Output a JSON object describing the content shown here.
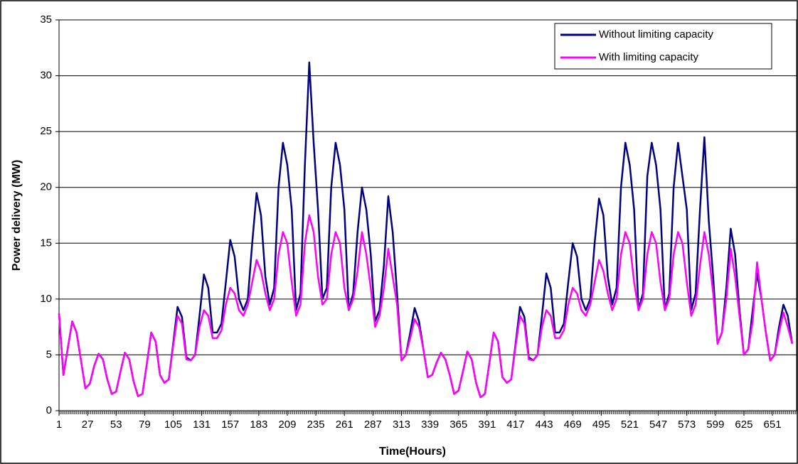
{
  "chart_data": {
    "type": "line",
    "x_label": "Time(Hours)",
    "y_label": "Power delivery (MW)",
    "xlim": [
      1,
      673
    ],
    "xticks": [
      1,
      27,
      53,
      79,
      105,
      131,
      157,
      183,
      209,
      235,
      261,
      287,
      313,
      339,
      365,
      391,
      417,
      443,
      469,
      495,
      521,
      547,
      573,
      599,
      625,
      651
    ],
    "ylim": [
      0,
      35
    ],
    "yticks": [
      0,
      5,
      10,
      15,
      20,
      25,
      30,
      35
    ],
    "grid": true,
    "legend": "top-right",
    "x": [
      1,
      5,
      9,
      13,
      17,
      21,
      25,
      29,
      33,
      37,
      41,
      45,
      49,
      53,
      57,
      61,
      65,
      69,
      73,
      77,
      81,
      85,
      89,
      93,
      97,
      101,
      105,
      109,
      113,
      117,
      121,
      125,
      129,
      133,
      137,
      141,
      145,
      149,
      153,
      157,
      161,
      165,
      169,
      173,
      177,
      181,
      185,
      189,
      193,
      197,
      201,
      205,
      209,
      213,
      217,
      221,
      225,
      229,
      233,
      237,
      241,
      245,
      249,
      253,
      257,
      261,
      265,
      269,
      273,
      277,
      281,
      285,
      289,
      293,
      297,
      301,
      305,
      309,
      313,
      317,
      321,
      325,
      329,
      333,
      337,
      341,
      345,
      349,
      353,
      357,
      361,
      365,
      369,
      373,
      377,
      381,
      385,
      389,
      393,
      397,
      401,
      405,
      409,
      413,
      417,
      421,
      425,
      429,
      433,
      437,
      441,
      445,
      449,
      453,
      457,
      461,
      465,
      469,
      473,
      477,
      481,
      485,
      489,
      493,
      497,
      501,
      505,
      509,
      513,
      517,
      521,
      525,
      529,
      533,
      537,
      541,
      545,
      549,
      553,
      557,
      561,
      565,
      569,
      573,
      577,
      581,
      585,
      589,
      593,
      597,
      601,
      605,
      609,
      613,
      617,
      621,
      625,
      629,
      633,
      637,
      641,
      645,
      649,
      653,
      657,
      661,
      665,
      669
    ],
    "series": [
      {
        "name": "Without limiting capacity",
        "color": "#000080",
        "values": [
          8.7,
          3.2,
          5.6,
          8.0,
          7.0,
          4.5,
          2.0,
          2.4,
          4.0,
          5.1,
          4.6,
          2.8,
          1.5,
          1.7,
          3.5,
          5.2,
          4.6,
          2.6,
          1.3,
          1.5,
          4.2,
          7.0,
          6.2,
          3.2,
          2.5,
          2.8,
          6.0,
          9.3,
          8.4,
          4.8,
          4.5,
          5.0,
          8.5,
          12.2,
          11.0,
          7.0,
          7.0,
          7.8,
          11.5,
          15.3,
          13.8,
          10.0,
          9.0,
          10.0,
          15.0,
          19.5,
          17.5,
          12.0,
          9.5,
          11.0,
          20.0,
          24.0,
          22.0,
          18.0,
          9.0,
          10.5,
          22.0,
          31.2,
          24.0,
          18.0,
          10.0,
          11.0,
          20.0,
          24.0,
          22.0,
          18.0,
          9.0,
          10.5,
          16.0,
          20.0,
          18.0,
          14.0,
          8.0,
          9.0,
          13.0,
          19.2,
          16.0,
          10.5,
          4.5,
          5.0,
          7.0,
          9.2,
          8.0,
          5.5,
          3.0,
          3.2,
          4.3,
          5.2,
          4.6,
          3.2,
          1.5,
          1.8,
          3.5,
          5.3,
          4.6,
          2.5,
          1.2,
          1.5,
          4.2,
          7.0,
          6.2,
          3.0,
          2.5,
          2.8,
          6.0,
          9.3,
          8.4,
          4.8,
          4.5,
          5.0,
          8.5,
          12.3,
          11.0,
          7.0,
          7.0,
          7.8,
          11.5,
          15.0,
          13.8,
          10.0,
          9.0,
          10.0,
          15.0,
          19.0,
          17.5,
          12.0,
          9.5,
          11.0,
          20.0,
          24.0,
          22.0,
          18.0,
          9.0,
          10.5,
          21.0,
          24.0,
          22.0,
          18.0,
          9.0,
          10.5,
          20.0,
          24.0,
          21.0,
          18.0,
          9.0,
          10.5,
          18.0,
          24.5,
          17.0,
          12.0,
          6.0,
          7.0,
          11.0,
          16.3,
          14.0,
          9.0,
          5.0,
          5.5,
          9.0,
          12.3,
          10.0,
          7.0,
          4.5,
          5.0,
          7.5,
          9.5,
          8.5,
          6.0
        ]
      },
      {
        "name": "With limiting capacity",
        "color": "#ff00ff",
        "values": [
          8.7,
          3.2,
          5.6,
          8.0,
          7.0,
          4.5,
          2.0,
          2.4,
          4.0,
          5.1,
          4.6,
          2.8,
          1.5,
          1.7,
          3.5,
          5.2,
          4.6,
          2.6,
          1.3,
          1.5,
          4.2,
          7.0,
          6.2,
          3.2,
          2.5,
          2.8,
          5.8,
          8.5,
          7.8,
          4.6,
          4.5,
          5.0,
          7.5,
          9.0,
          8.5,
          6.5,
          6.5,
          7.2,
          9.5,
          11.0,
          10.5,
          9.0,
          8.5,
          9.5,
          11.5,
          13.5,
          12.5,
          10.5,
          9.0,
          10.0,
          14.0,
          16.0,
          15.0,
          11.5,
          8.5,
          9.5,
          15.0,
          17.5,
          16.0,
          12.0,
          9.5,
          10.0,
          14.0,
          16.0,
          15.0,
          11.0,
          9.0,
          10.0,
          12.5,
          16.0,
          14.0,
          11.0,
          7.5,
          8.5,
          11.0,
          14.5,
          12.0,
          9.5,
          4.5,
          5.0,
          6.5,
          8.2,
          7.5,
          5.5,
          3.0,
          3.2,
          4.3,
          5.2,
          4.6,
          3.2,
          1.5,
          1.8,
          3.5,
          5.3,
          4.6,
          2.5,
          1.2,
          1.5,
          4.2,
          7.0,
          6.2,
          3.0,
          2.5,
          2.8,
          5.8,
          8.5,
          7.8,
          4.6,
          4.5,
          5.0,
          7.5,
          9.0,
          8.5,
          6.5,
          6.5,
          7.2,
          9.5,
          11.0,
          10.5,
          9.0,
          8.5,
          9.5,
          11.5,
          13.5,
          12.5,
          10.5,
          9.0,
          10.0,
          14.0,
          16.0,
          15.0,
          11.5,
          9.0,
          10.0,
          14.0,
          16.0,
          15.0,
          11.5,
          9.0,
          10.0,
          14.0,
          16.0,
          15.0,
          11.5,
          8.5,
          9.5,
          13.0,
          16.0,
          14.0,
          10.5,
          6.0,
          7.0,
          10.0,
          14.5,
          12.0,
          8.5,
          5.0,
          5.5,
          8.0,
          13.3,
          10.0,
          7.0,
          4.5,
          5.0,
          7.0,
          8.8,
          7.5,
          6.0
        ]
      }
    ]
  }
}
